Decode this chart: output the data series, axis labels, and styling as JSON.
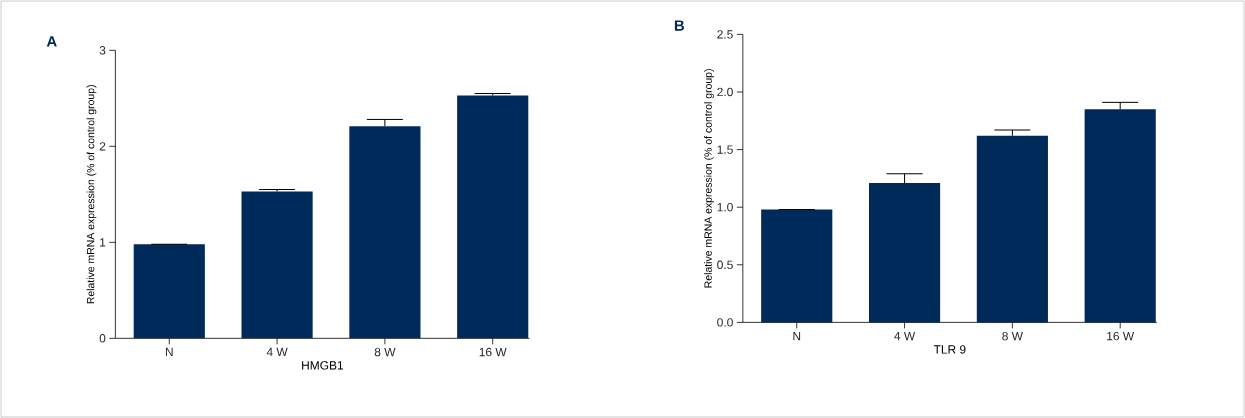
{
  "chart_data": [
    {
      "type": "bar",
      "title": "A",
      "xlabel": "HMGB1",
      "ylabel": "Relative mRNA expression (% of control group)",
      "categories": [
        "N",
        "4 W",
        "8 W",
        "16 W"
      ],
      "values": [
        0.98,
        1.53,
        2.21,
        2.53
      ],
      "errors": [
        null,
        0.02,
        0.07,
        0.02
      ],
      "color": "#002a5a",
      "ylim": [
        0,
        3
      ],
      "yticks": [
        0,
        1,
        2,
        3
      ]
    },
    {
      "type": "bar",
      "title": "B",
      "xlabel": "TLR 9",
      "ylabel": "Relative mRNA expression (% of control group)",
      "categories": [
        "N",
        "4 W",
        "8 W",
        "16 W"
      ],
      "values": [
        0.98,
        1.21,
        1.62,
        1.85
      ],
      "errors": [
        null,
        0.08,
        0.05,
        0.06
      ],
      "color": "#002a5a",
      "ylim": [
        0,
        2.5
      ],
      "yticks": [
        {
          "value": 0,
          "label": "0.0"
        },
        {
          "value": 0.5,
          "label": "0.5"
        },
        {
          "value": 1,
          "label": "1.0"
        },
        {
          "value": 1.5,
          "label": "1.5"
        },
        {
          "value": 2,
          "label": "2.0"
        },
        {
          "value": 2.5,
          "label": "2.5"
        }
      ]
    }
  ]
}
